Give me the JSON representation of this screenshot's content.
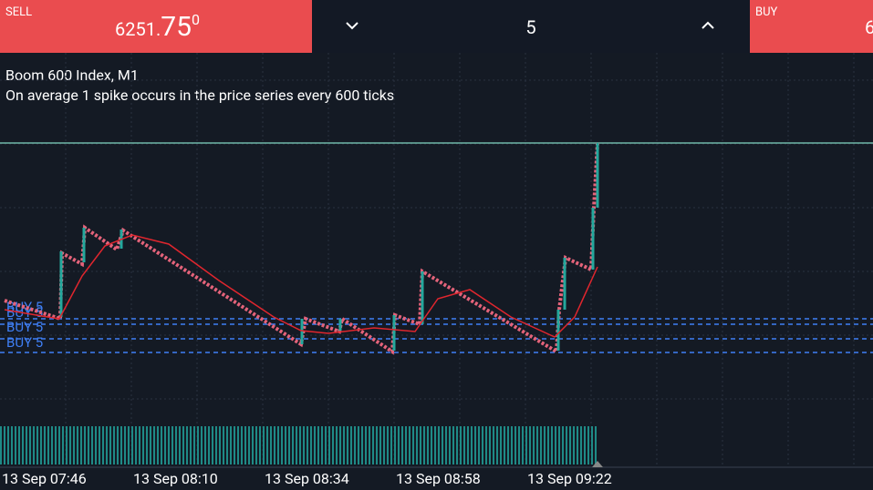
{
  "header": {
    "sell": {
      "label": "SELL",
      "price_main": "6251.",
      "price_big": "75",
      "price_sup": "0"
    },
    "volume": "5",
    "buy": {
      "label": "BUY",
      "price_partial": "6"
    }
  },
  "chart": {
    "symbol": "Boom 600 Index, M1",
    "description": "On average 1 spike occurs in the price series every 600 ticks",
    "order_lines": [
      "BUY 5",
      "BUY 5",
      "BUY 5",
      "BUY 5"
    ],
    "time_labels": [
      "13 Sep 07:46",
      "13 Sep 08:10",
      "13 Sep 08:34",
      "13 Sep 08:58",
      "13 Sep 09:22"
    ]
  }
}
